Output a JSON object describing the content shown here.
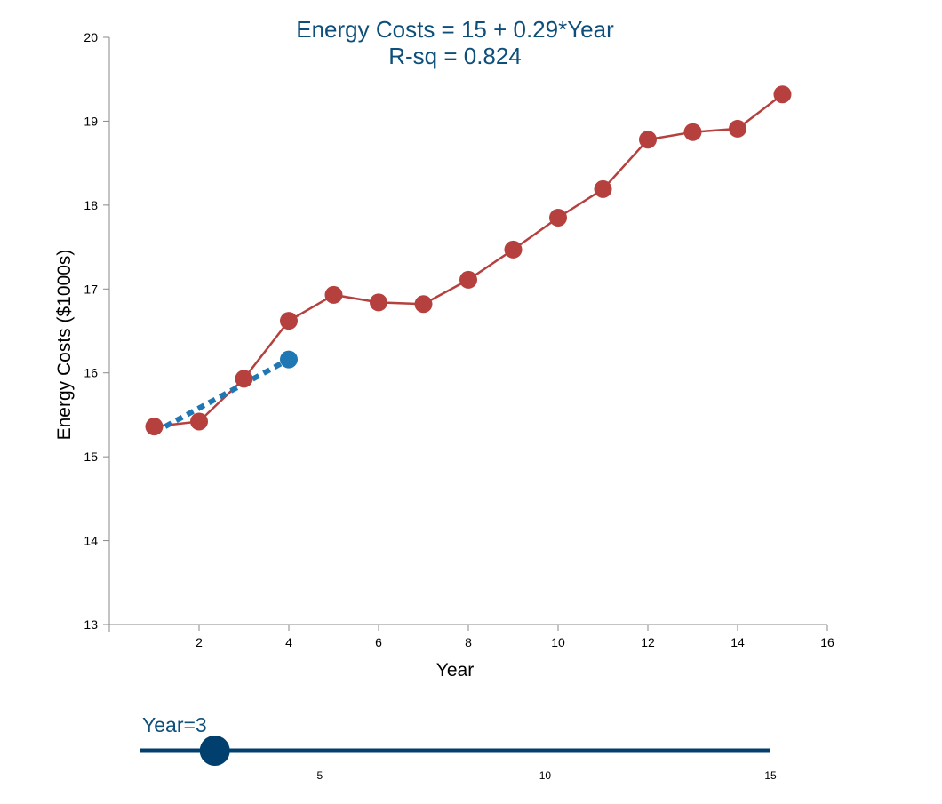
{
  "chart_data": {
    "type": "line",
    "title": "Energy Costs = 15 + 0.29*Year",
    "subtitle": "R-sq = 0.824",
    "xlabel": "Year",
    "ylabel": "Energy Costs ($1000s)",
    "xlim": [
      0,
      16
    ],
    "ylim": [
      13,
      20
    ],
    "xticks": [
      2,
      4,
      6,
      8,
      10,
      12,
      14,
      16
    ],
    "yticks": [
      13,
      14,
      15,
      16,
      17,
      18,
      19,
      20
    ],
    "grid": false,
    "x": [
      1,
      2,
      3,
      4,
      5,
      6,
      7,
      8,
      9,
      10,
      11,
      12,
      13,
      14,
      15
    ],
    "series": [
      {
        "values": [
          15.36,
          15.42,
          15.93,
          16.62,
          16.93,
          16.84,
          16.82,
          17.11,
          17.47,
          17.85,
          18.19,
          18.78,
          18.87,
          18.91,
          19.32
        ],
        "color": "#b5403d"
      }
    ],
    "regression": {
      "intercept": 15,
      "slope": 0.29,
      "x_start": 1,
      "x_end": 4,
      "color": "#1f77b4"
    },
    "prediction_point": {
      "x": 4,
      "y": 16.16,
      "color": "#1f77b4"
    }
  },
  "slider": {
    "label": "Year=3",
    "min": 1,
    "max": 15,
    "value": 2.67,
    "ticks": [
      "5",
      "10",
      "15"
    ],
    "tick_values": [
      5,
      10,
      15
    ],
    "color": "#003f6e"
  },
  "colors": {
    "title": "#0d4f7a"
  }
}
